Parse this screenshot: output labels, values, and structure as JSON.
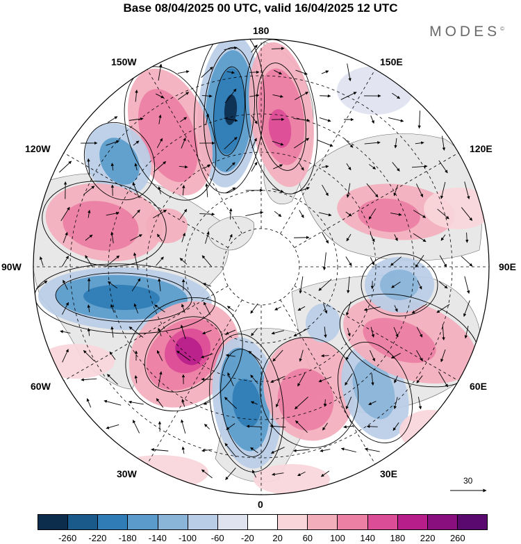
{
  "title": "Base 08/04/2025 00 UTC, valid 16/04/2025 12 UTC",
  "brand": "MODES",
  "brand_mark": "©",
  "longitude_labels": {
    "lon_180": "180",
    "lon_150e": "150E",
    "lon_120e": "120E",
    "lon_90e": "90E",
    "lon_60e": "60E",
    "lon_30e": "30E",
    "lon_0": "0",
    "lon_30w": "30W",
    "lon_60w": "60W",
    "lon_90w": "90W",
    "lon_120w": "120W",
    "lon_150w": "150W"
  },
  "reference_vector_label": "30",
  "colorbar": {
    "labels": [
      "-260",
      "-220",
      "-180",
      "-140",
      "-100",
      "-60",
      "-20",
      "20",
      "60",
      "100",
      "140",
      "180",
      "220",
      "260"
    ],
    "colors": [
      "#0c2d4c",
      "#1a5a8a",
      "#2f7cb6",
      "#5a9bcb",
      "#8bb4d9",
      "#b9cde6",
      "#dfe3f0",
      "#ffffff",
      "#f9d6da",
      "#f3aebc",
      "#eb7fa4",
      "#dc4d98",
      "#b81e8a",
      "#8a0f7e",
      "#5a0a6e"
    ]
  },
  "colors": {
    "land": "#eaeaea",
    "ocean": "#ffffff",
    "graticule": "#000000"
  }
}
